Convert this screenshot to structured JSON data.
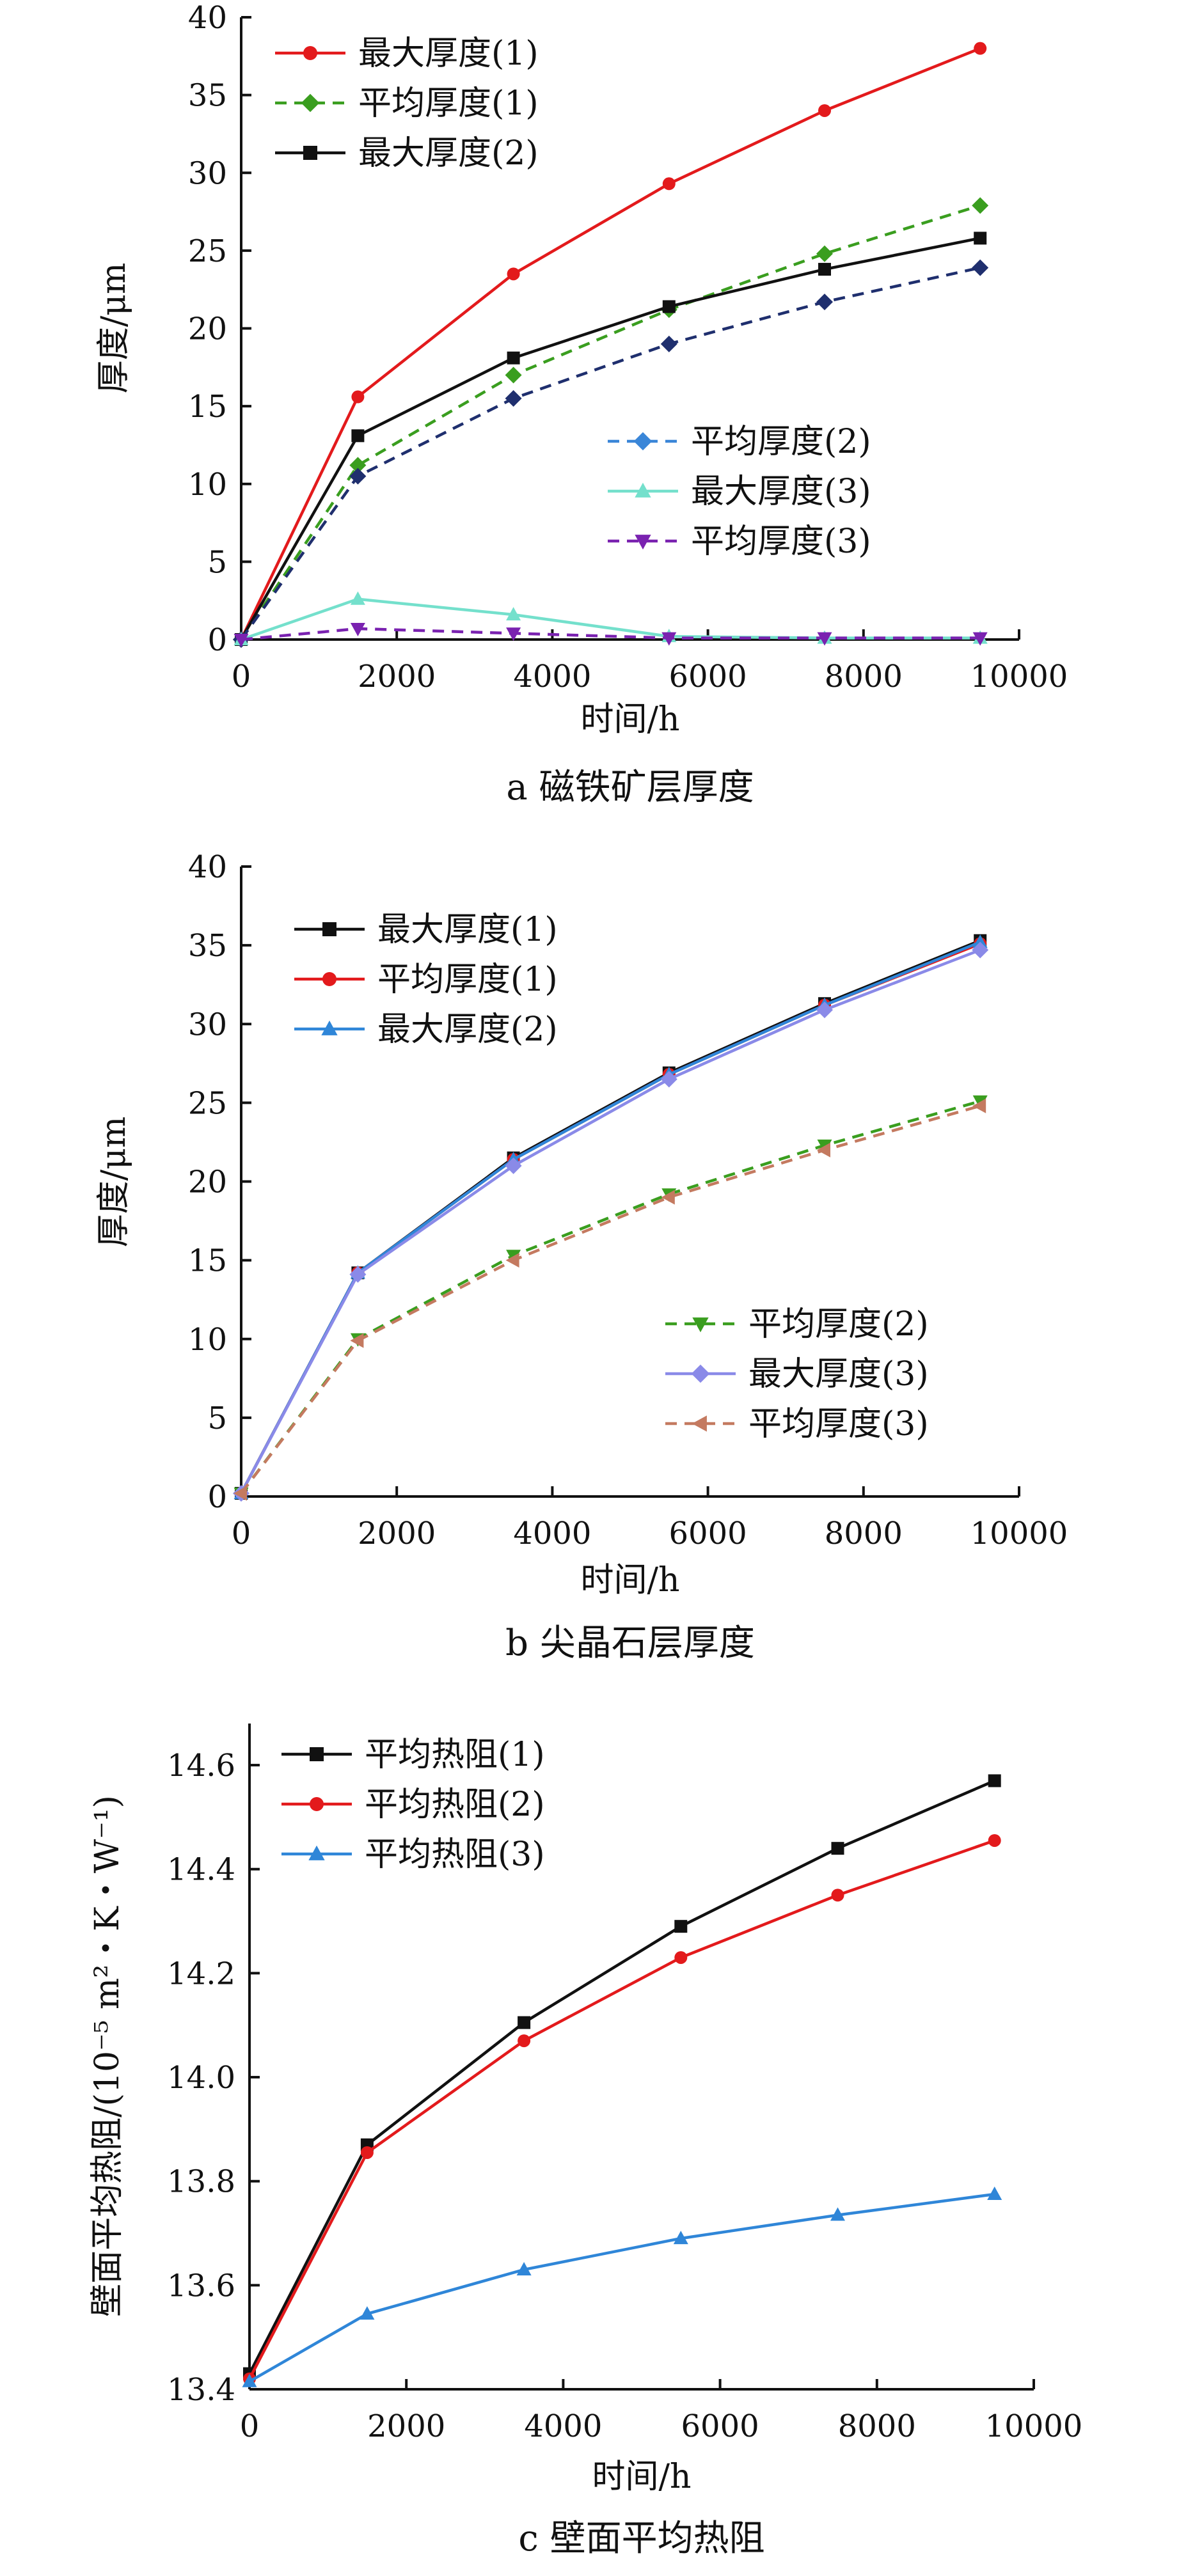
{
  "chart_data": [
    {
      "type": "line",
      "caption": "a  磁铁矿层厚度",
      "xlabel": "时间/h",
      "ylabel": "厚度/μm",
      "xlim": [
        0,
        10000
      ],
      "ylim": [
        0,
        40
      ],
      "xticks": [
        0,
        2000,
        4000,
        6000,
        8000,
        10000
      ],
      "yticks": [
        0,
        5,
        10,
        15,
        20,
        25,
        30,
        35,
        40
      ],
      "x": [
        0,
        1500,
        3500,
        5500,
        7500,
        9500
      ],
      "legends": [
        {
          "position": "top-left",
          "entries": [
            0,
            1,
            2
          ]
        },
        {
          "position": "center-right",
          "entries": [
            3,
            4,
            5
          ]
        }
      ],
      "series": [
        {
          "name": "最大厚度(1)",
          "values": [
            0,
            15.6,
            23.5,
            29.3,
            34.0,
            38.0
          ],
          "color": "#e31a1c",
          "marker": "circle",
          "dash": false
        },
        {
          "name": "平均厚度(1)",
          "values": [
            0,
            11.2,
            17.0,
            21.2,
            24.8,
            27.9
          ],
          "color": "#3a9e1f",
          "marker": "diamond",
          "dash": true
        },
        {
          "name": "最大厚度(2)",
          "values": [
            0,
            13.1,
            18.1,
            21.4,
            23.8,
            25.8
          ],
          "color": "#111111",
          "marker": "square",
          "dash": false
        },
        {
          "name": "平均厚度(2)",
          "values": [
            0,
            10.5,
            15.5,
            19.0,
            21.7,
            23.9
          ],
          "color": "#1f2f6e",
          "legend_color": "#3a86d8",
          "marker": "diamond",
          "dash": true
        },
        {
          "name": "最大厚度(3)",
          "values": [
            0,
            2.6,
            1.6,
            0.2,
            0.1,
            0.1
          ],
          "color": "#74e0cc",
          "marker": "triangle-up",
          "dash": false
        },
        {
          "name": "平均厚度(3)",
          "values": [
            0,
            0.7,
            0.4,
            0.1,
            0.1,
            0.1
          ],
          "color": "#7a22b0",
          "marker": "triangle-down",
          "dash": true
        }
      ]
    },
    {
      "type": "line",
      "caption": "b  尖晶石层厚度",
      "xlabel": "时间/h",
      "ylabel": "厚度/μm",
      "xlim": [
        0,
        10000
      ],
      "ylim": [
        0,
        40
      ],
      "xticks": [
        0,
        2000,
        4000,
        6000,
        8000,
        10000
      ],
      "yticks": [
        0,
        5,
        10,
        15,
        20,
        25,
        30,
        35,
        40
      ],
      "x": [
        0,
        1500,
        3500,
        5500,
        7500,
        9500
      ],
      "legends": [
        {
          "position": "top-left",
          "entries": [
            0,
            1,
            2
          ]
        },
        {
          "position": "center-right",
          "entries": [
            3,
            4,
            5
          ]
        }
      ],
      "series": [
        {
          "name": "最大厚度(1)",
          "values": [
            0.2,
            14.2,
            21.5,
            26.9,
            31.3,
            35.3
          ],
          "color": "#111111",
          "marker": "square",
          "dash": false
        },
        {
          "name": "平均厚度(1)",
          "values": [
            0.2,
            14.2,
            21.4,
            26.8,
            31.2,
            35.1
          ],
          "color": "#e31a1c",
          "marker": "circle",
          "dash": false
        },
        {
          "name": "最大厚度(2)",
          "values": [
            0.2,
            14.2,
            21.4,
            26.8,
            31.2,
            35.2
          ],
          "color": "#2f86d8",
          "marker": "triangle-up",
          "dash": false
        },
        {
          "name": "平均厚度(2)",
          "values": [
            0.2,
            10.0,
            15.3,
            19.2,
            22.3,
            25.1
          ],
          "color": "#3a9e1f",
          "marker": "triangle-down",
          "dash": true
        },
        {
          "name": "最大厚度(3)",
          "values": [
            0.2,
            14.1,
            21.0,
            26.5,
            30.9,
            34.7
          ],
          "color": "#8a8ae8",
          "marker": "diamond",
          "dash": false
        },
        {
          "name": "平均厚度(3)",
          "values": [
            0.2,
            9.9,
            15.0,
            19.0,
            22.0,
            24.8
          ],
          "color": "#c47a60",
          "marker": "triangle-left",
          "dash": true
        }
      ]
    },
    {
      "type": "line",
      "caption": "c  壁面平均热阻",
      "xlabel": "时间/h",
      "ylabel": "壁面平均热阻/(10⁻⁵ m²・K・W⁻¹)",
      "xlim": [
        0,
        10000
      ],
      "ylim": [
        13.4,
        14.68
      ],
      "xticks": [
        0,
        2000,
        4000,
        6000,
        8000,
        10000
      ],
      "yticks": [
        13.4,
        13.6,
        13.8,
        14.0,
        14.2,
        14.4,
        14.6
      ],
      "ytick_labels": [
        "13.4",
        "13.6",
        "13.8",
        "14.0",
        "14.2",
        "14.4",
        "14.6"
      ],
      "x": [
        0,
        1500,
        3500,
        5500,
        7500,
        9500
      ],
      "legends": [
        {
          "position": "top-left",
          "entries": [
            0,
            1,
            2
          ]
        }
      ],
      "series": [
        {
          "name": "平均热阻(1)",
          "values": [
            13.43,
            13.87,
            14.105,
            14.29,
            14.44,
            14.57
          ],
          "color": "#111111",
          "marker": "square",
          "dash": false
        },
        {
          "name": "平均热阻(2)",
          "values": [
            13.42,
            13.855,
            14.07,
            14.23,
            14.35,
            14.455
          ],
          "color": "#e31a1c",
          "marker": "circle",
          "dash": false
        },
        {
          "name": "平均热阻(3)",
          "values": [
            13.415,
            13.545,
            13.63,
            13.69,
            13.735,
            13.775
          ],
          "color": "#2f86d8",
          "marker": "triangle-up",
          "dash": false
        }
      ]
    }
  ]
}
